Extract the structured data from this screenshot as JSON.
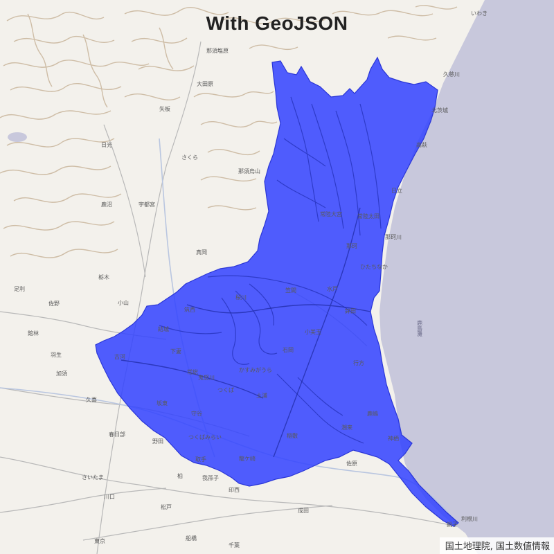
{
  "title": "With GeoJSON",
  "attribution": "国土地理院, 国土数値情報",
  "colors": {
    "land": "#f3f1ec",
    "sea": "#c8c8dc",
    "overlay": "#3344ff",
    "contour": "#c8b49a",
    "road": "#b8b8b8"
  },
  "map_labels": {
    "nasu": "那須塩原",
    "otawara": "大田原",
    "yaita": "矢板",
    "nikko": "日光",
    "sakura": "さくら",
    "nasukarasuyama": "那須烏山",
    "kanuma": "鹿沼",
    "utsunomiya": "宇都宮",
    "mashiko": "真岡",
    "tochigi": "栃木",
    "oyama": "小山",
    "sano": "佐野",
    "ashikaga": "足利",
    "tatebayashi": "館林",
    "hanyu": "羽生",
    "koga": "古河",
    "kazo": "加須",
    "kuki": "久喜",
    "kasukabe": "春日部",
    "noda": "野田",
    "kashiwa": "柏",
    "matsudo": "松戸",
    "saitama": "さいたま",
    "kawaguchi": "川口",
    "tokyo": "東京",
    "funabashi": "船橋",
    "chiba": "千葉",
    "narita": "成田",
    "inzai": "印西",
    "abiko": "我孫子",
    "ryugasaki": "龍ケ崎",
    "toride": "取手",
    "moriya": "守谷",
    "tsukubamirai": "つくばみらい",
    "tsukuba": "つくば",
    "tsuchiura": "土浦",
    "ishioka": "石岡",
    "kasumigaura": "かすみがうら",
    "mito": "水戸",
    "kasama": "笠間",
    "hitachinaka": "ひたちなか",
    "hitachi": "日立",
    "takahagi": "高萩",
    "kitaibaraki": "北茨城",
    "iwaki": "いわき",
    "hokota": "鉾田",
    "namegata": "行方",
    "itako": "潮来",
    "kashima": "鹿嶋",
    "kamisu": "神栖",
    "choshi": "銚子",
    "sawara": "佐原",
    "inashiki": "稲敷",
    "bando": "坂東",
    "joso": "常総",
    "shimotsuma": "下妻",
    "chikusei": "筑西",
    "yuki": "結城",
    "sakuragawa": "桜川",
    "hitachiota": "常陸太田",
    "hitachiomiya": "常陸大宮",
    "naka": "那珂",
    "omitama": "小美玉",
    "sea_kashimanada": "鹿島灘",
    "river_tone": "利根川",
    "river_kinu": "鬼怒川",
    "river_naka": "那珂川",
    "river_kuji": "久慈川"
  }
}
